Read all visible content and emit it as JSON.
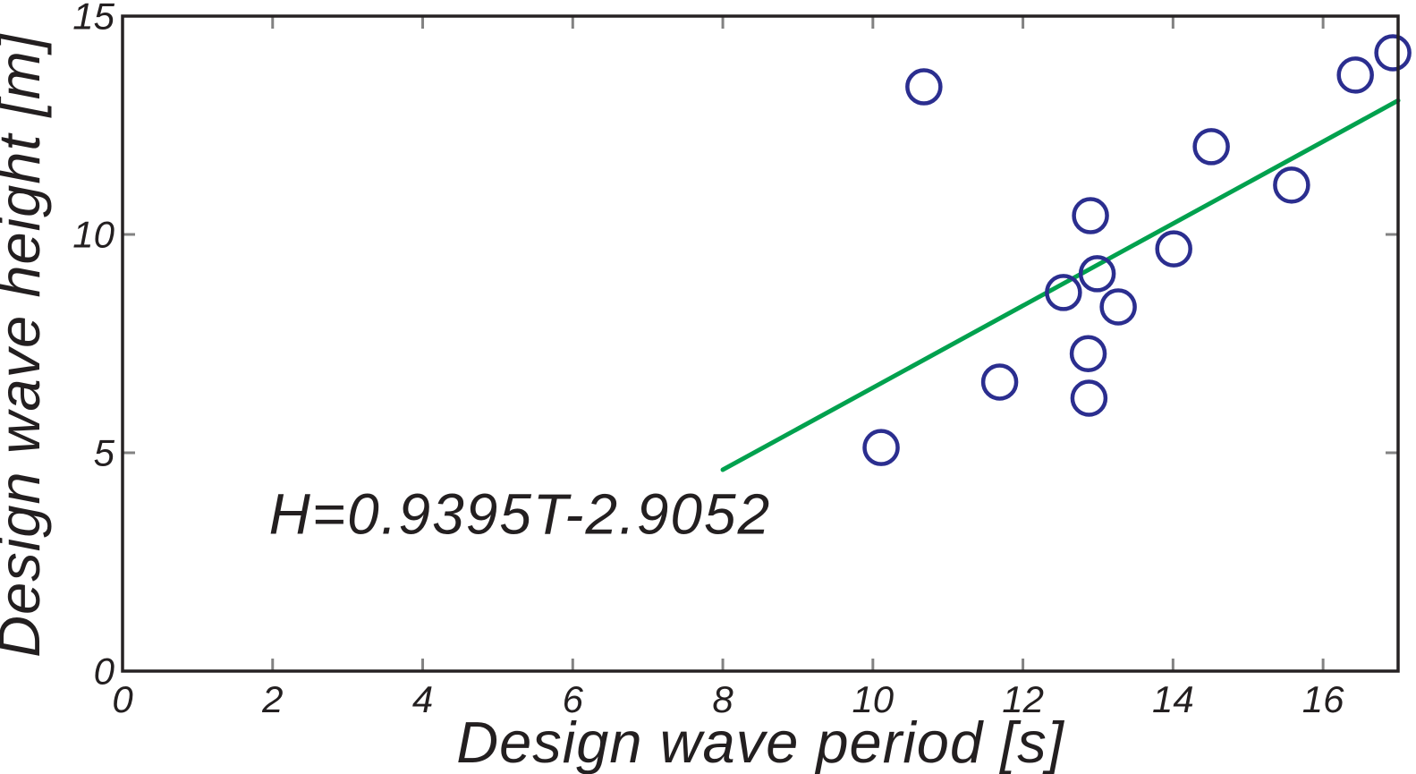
{
  "figure": {
    "background": "#ffffff"
  },
  "chart_data": {
    "type": "scatter",
    "title": "",
    "xlabel": "Design wave period [s]",
    "ylabel": "Design wave height [m]",
    "xlim": [
      0,
      17
    ],
    "ylim": [
      0,
      15
    ],
    "x_ticks": [
      0,
      2,
      4,
      6,
      8,
      10,
      12,
      14,
      16
    ],
    "y_ticks": [
      0,
      5,
      10,
      15
    ],
    "grid": false,
    "legend_position": "none",
    "points": [
      {
        "x": 10.11,
        "y": 5.12
      },
      {
        "x": 10.68,
        "y": 13.38
      },
      {
        "x": 11.69,
        "y": 6.62
      },
      {
        "x": 12.54,
        "y": 8.67
      },
      {
        "x": 12.87,
        "y": 7.27
      },
      {
        "x": 12.88,
        "y": 6.25
      },
      {
        "x": 12.9,
        "y": 10.43
      },
      {
        "x": 12.99,
        "y": 9.1
      },
      {
        "x": 13.27,
        "y": 8.34
      },
      {
        "x": 14.01,
        "y": 9.67
      },
      {
        "x": 14.51,
        "y": 12.01
      },
      {
        "x": 15.58,
        "y": 11.13
      },
      {
        "x": 16.43,
        "y": 13.65
      },
      {
        "x": 16.93,
        "y": 14.16
      }
    ],
    "trendline": {
      "slope": 0.9395,
      "intercept": -2.9052,
      "x_start": 8,
      "x_end": 17
    },
    "annotation": {
      "text": "H=0.9395T-2.9052",
      "x": 1.95,
      "y": 3.6
    },
    "colors": {
      "marker": "#2b2e8f",
      "trendline": "#00a14e",
      "frame": "#262223",
      "tick": "#828282",
      "text": "#231f20"
    }
  }
}
